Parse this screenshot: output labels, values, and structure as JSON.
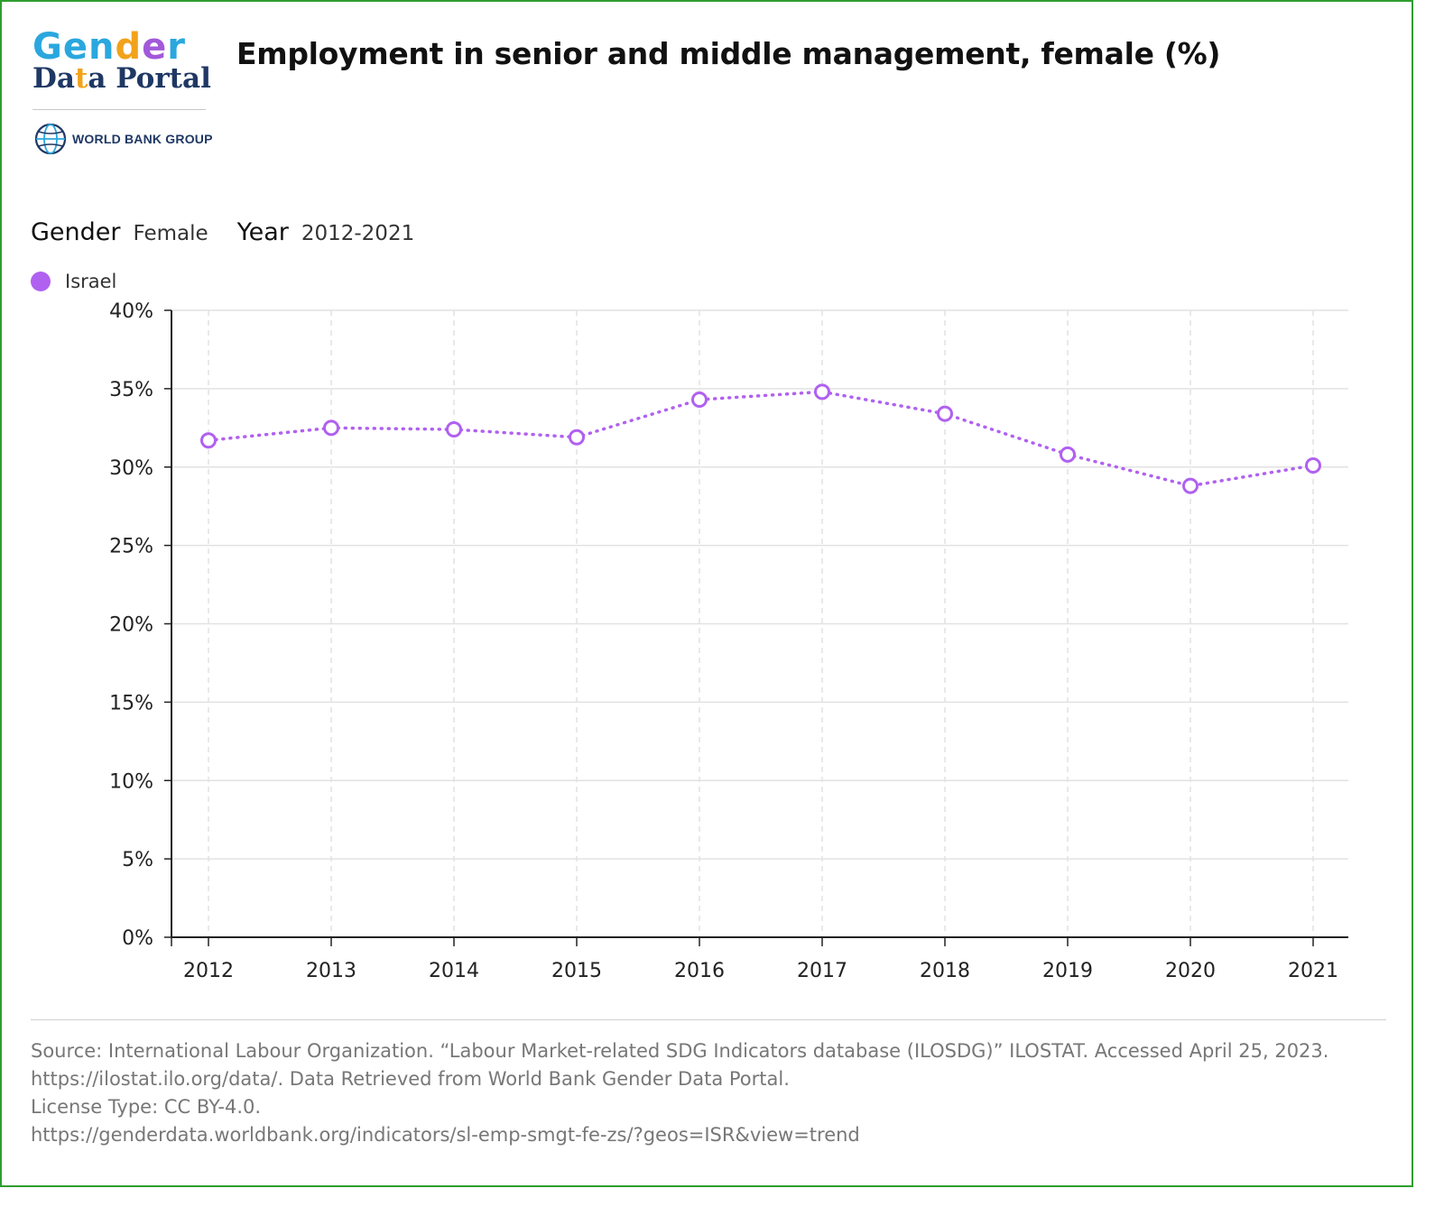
{
  "logo": {
    "line1_parts": [
      "Gen",
      "d",
      "e",
      "r"
    ],
    "line2_parts": [
      "Da",
      "t",
      "a Portal"
    ],
    "org": "WORLD BANK GROUP",
    "colors": {
      "blue": "#2aa7de",
      "orange": "#f2a21a",
      "purple": "#a259d9",
      "navy": "#1f3864"
    }
  },
  "title": "Employment in senior and middle management, female (%)",
  "filters": {
    "gender_label": "Gender",
    "gender_value": "Female",
    "year_label": "Year",
    "year_value": "2012-2021"
  },
  "legend": {
    "label": "Israel",
    "color": "#b061f0"
  },
  "chart_data": {
    "type": "line",
    "x": [
      "2012",
      "2013",
      "2014",
      "2015",
      "2016",
      "2017",
      "2018",
      "2019",
      "2020",
      "2021"
    ],
    "series": [
      {
        "name": "Israel",
        "values": [
          31.7,
          32.5,
          32.4,
          31.9,
          34.3,
          34.8,
          33.4,
          30.8,
          28.8,
          30.1
        ],
        "color": "#b061f0",
        "style": "dotted",
        "marker": "open-circle"
      }
    ],
    "ylim": [
      0,
      40
    ],
    "yticks": [
      0,
      5,
      10,
      15,
      20,
      25,
      30,
      35,
      40
    ],
    "ytick_labels": [
      "0%",
      "5%",
      "10%",
      "15%",
      "20%",
      "25%",
      "30%",
      "35%",
      "40%"
    ],
    "xlabel": "",
    "ylabel": "",
    "grid": true,
    "legend_position": "top-left"
  },
  "source": {
    "line1": "Source: International Labour Organization. “Labour Market-related SDG Indicators database (ILOSDG)” ILOSTAT. Accessed April 25, 2023.",
    "line2": "https://ilostat.ilo.org/data/. Data Retrieved from World Bank Gender Data Portal.",
    "line3": "License Type: CC BY-4.0.",
    "line4": "https://genderdata.worldbank.org/indicators/sl-emp-smgt-fe-zs/?geos=ISR&view=trend"
  }
}
